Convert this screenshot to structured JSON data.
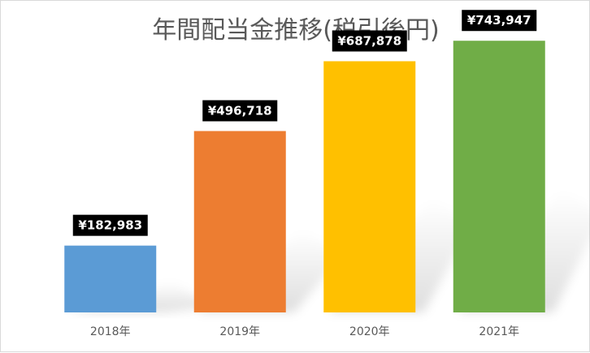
{
  "chart_data": {
    "type": "bar",
    "title": "年間配当金推移(税引後円)",
    "categories": [
      "2018年",
      "2019年",
      "2020年",
      "2021年"
    ],
    "values": [
      182983,
      496718,
      687878,
      743947
    ],
    "data_labels": [
      "¥182,983",
      "¥496,718",
      "¥687,878",
      "¥743,947"
    ],
    "colors": [
      "#5B9BD5",
      "#ED7D31",
      "#FFC000",
      "#70AD47"
    ],
    "ylim": [
      0,
      800000
    ],
    "grid": false,
    "legend": "none"
  }
}
